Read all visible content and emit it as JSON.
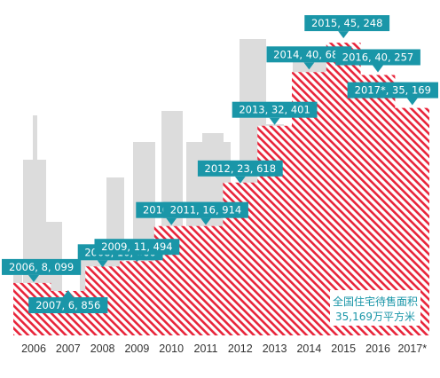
{
  "chart_data": {
    "type": "area",
    "categories": [
      "2006",
      "2007",
      "2008",
      "2009",
      "2010",
      "2011",
      "2012",
      "2013",
      "2014",
      "2015",
      "2016",
      "2017*"
    ],
    "values": [
      8099,
      6856,
      10660,
      11494,
      16903,
      16914,
      23618,
      32401,
      40684,
      45248,
      40257,
      35169
    ],
    "labels": [
      "2006, 8, 099",
      "2007, 6, 856",
      "2008, 10, 660",
      "2009, 11, 494",
      "2010, 16, 903",
      "2011, 16, 914",
      "2012, 23, 618",
      "2013, 32, 401",
      "2014, 40, 684",
      "2015, 45, 248",
      "2016, 40, 257",
      "2017*, 35, 169"
    ],
    "ylim": [
      0,
      48000
    ],
    "grid": false,
    "legend": "none",
    "annotation": [
      "全国住宅待售面积",
      "35,169万平方米"
    ],
    "colors": {
      "stripe": "#e8243a",
      "callout": "#1a96a8",
      "annotation_text": "#1a96a8",
      "skyline": "#dcdcdc"
    }
  }
}
